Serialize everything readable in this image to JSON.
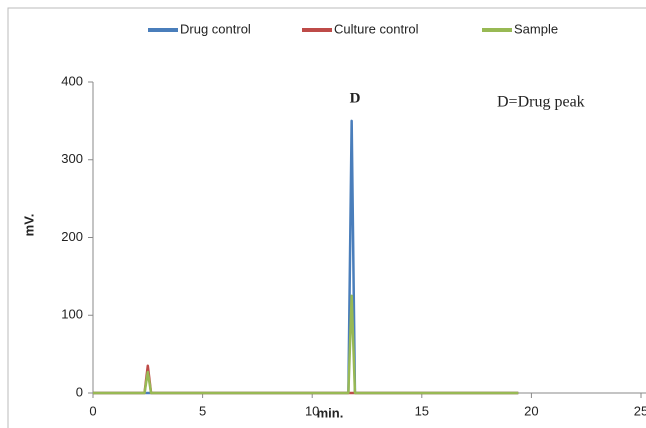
{
  "chart_data": {
    "type": "line",
    "x_label": "min.",
    "y_label": "mV.",
    "x": [
      0,
      2.35,
      2.5,
      2.65,
      11.65,
      11.8,
      11.95,
      19.4
    ],
    "series": [
      {
        "name": "Drug control",
        "color": "#4a7ebb",
        "values": [
          0,
          0,
          0,
          0,
          0,
          350,
          0,
          0
        ]
      },
      {
        "name": "Culture control",
        "color": "#be4b48",
        "values": [
          0,
          0,
          35,
          0,
          0,
          0,
          0,
          0
        ]
      },
      {
        "name": "Sample",
        "color": "#98b954",
        "values": [
          0,
          0,
          27,
          0,
          0,
          125,
          0,
          0
        ]
      }
    ],
    "xlim": [
      0,
      25
    ],
    "xticks": [
      0,
      5,
      10,
      15,
      20,
      25
    ],
    "ylim": [
      0,
      400
    ],
    "yticks": [
      0,
      100,
      200,
      300,
      400
    ],
    "grid": false,
    "annotations": [
      {
        "text": "D"
      },
      {
        "text": "D=Drug peak"
      }
    ]
  }
}
